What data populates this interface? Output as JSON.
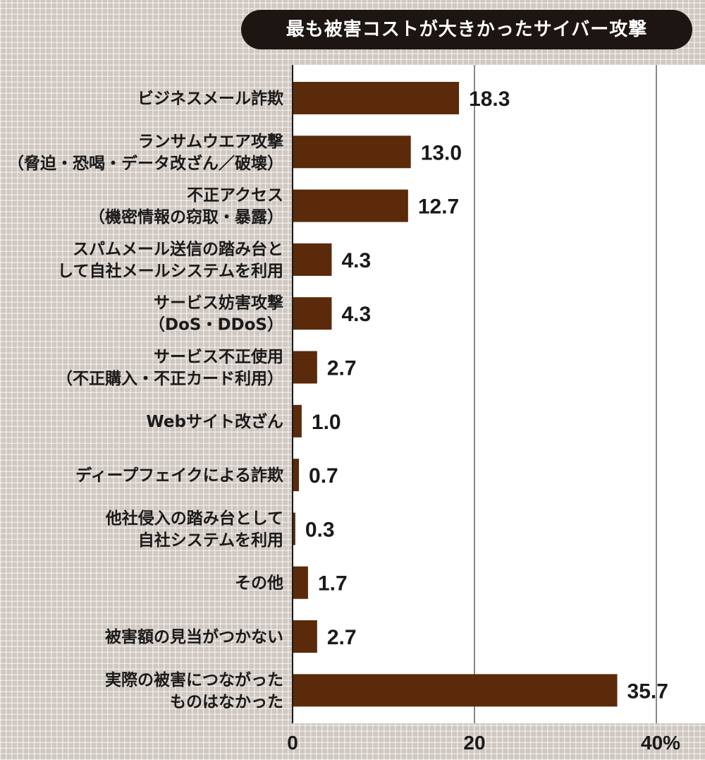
{
  "chart_data": {
    "type": "bar",
    "orientation": "horizontal",
    "title": "最も被害コストが大きかったサイバー攻撃",
    "categories": [
      [
        "ビジネスメール詐欺"
      ],
      [
        "ランサムウエア攻撃",
        "（脅迫・恐喝・データ改ざん／破壊）"
      ],
      [
        "不正アクセス",
        "（機密情報の窃取・暴露）"
      ],
      [
        "スパムメール送信の踏み台と",
        "して自社メールシステムを利用"
      ],
      [
        "サービス妨害攻撃",
        "（DoS・DDoS）"
      ],
      [
        "サービス不正使用",
        "（不正購入・不正カード利用）"
      ],
      [
        "Webサイト改ざん"
      ],
      [
        "ディープフェイクによる詐欺"
      ],
      [
        "他社侵入の踏み台として",
        "自社システムを利用"
      ],
      [
        "その他"
      ],
      [
        "被害額の見当がつかない"
      ],
      [
        "実際の被害につながった",
        "ものはなかった"
      ]
    ],
    "values": [
      18.3,
      13.0,
      12.7,
      4.3,
      4.3,
      2.7,
      1.0,
      0.7,
      0.3,
      1.7,
      2.7,
      35.7
    ],
    "value_labels": [
      "18.3",
      "13.0",
      "12.7",
      "4.3",
      "4.3",
      "2.7",
      "1.0",
      "0.7",
      "0.3",
      "1.7",
      "2.7",
      "35.7"
    ],
    "xlim": [
      0,
      40
    ],
    "xticks": [
      "0",
      "20",
      "40%"
    ],
    "xtick_values": [
      0,
      20,
      40
    ],
    "grid": true,
    "bar_color": "#5a2a0a"
  }
}
